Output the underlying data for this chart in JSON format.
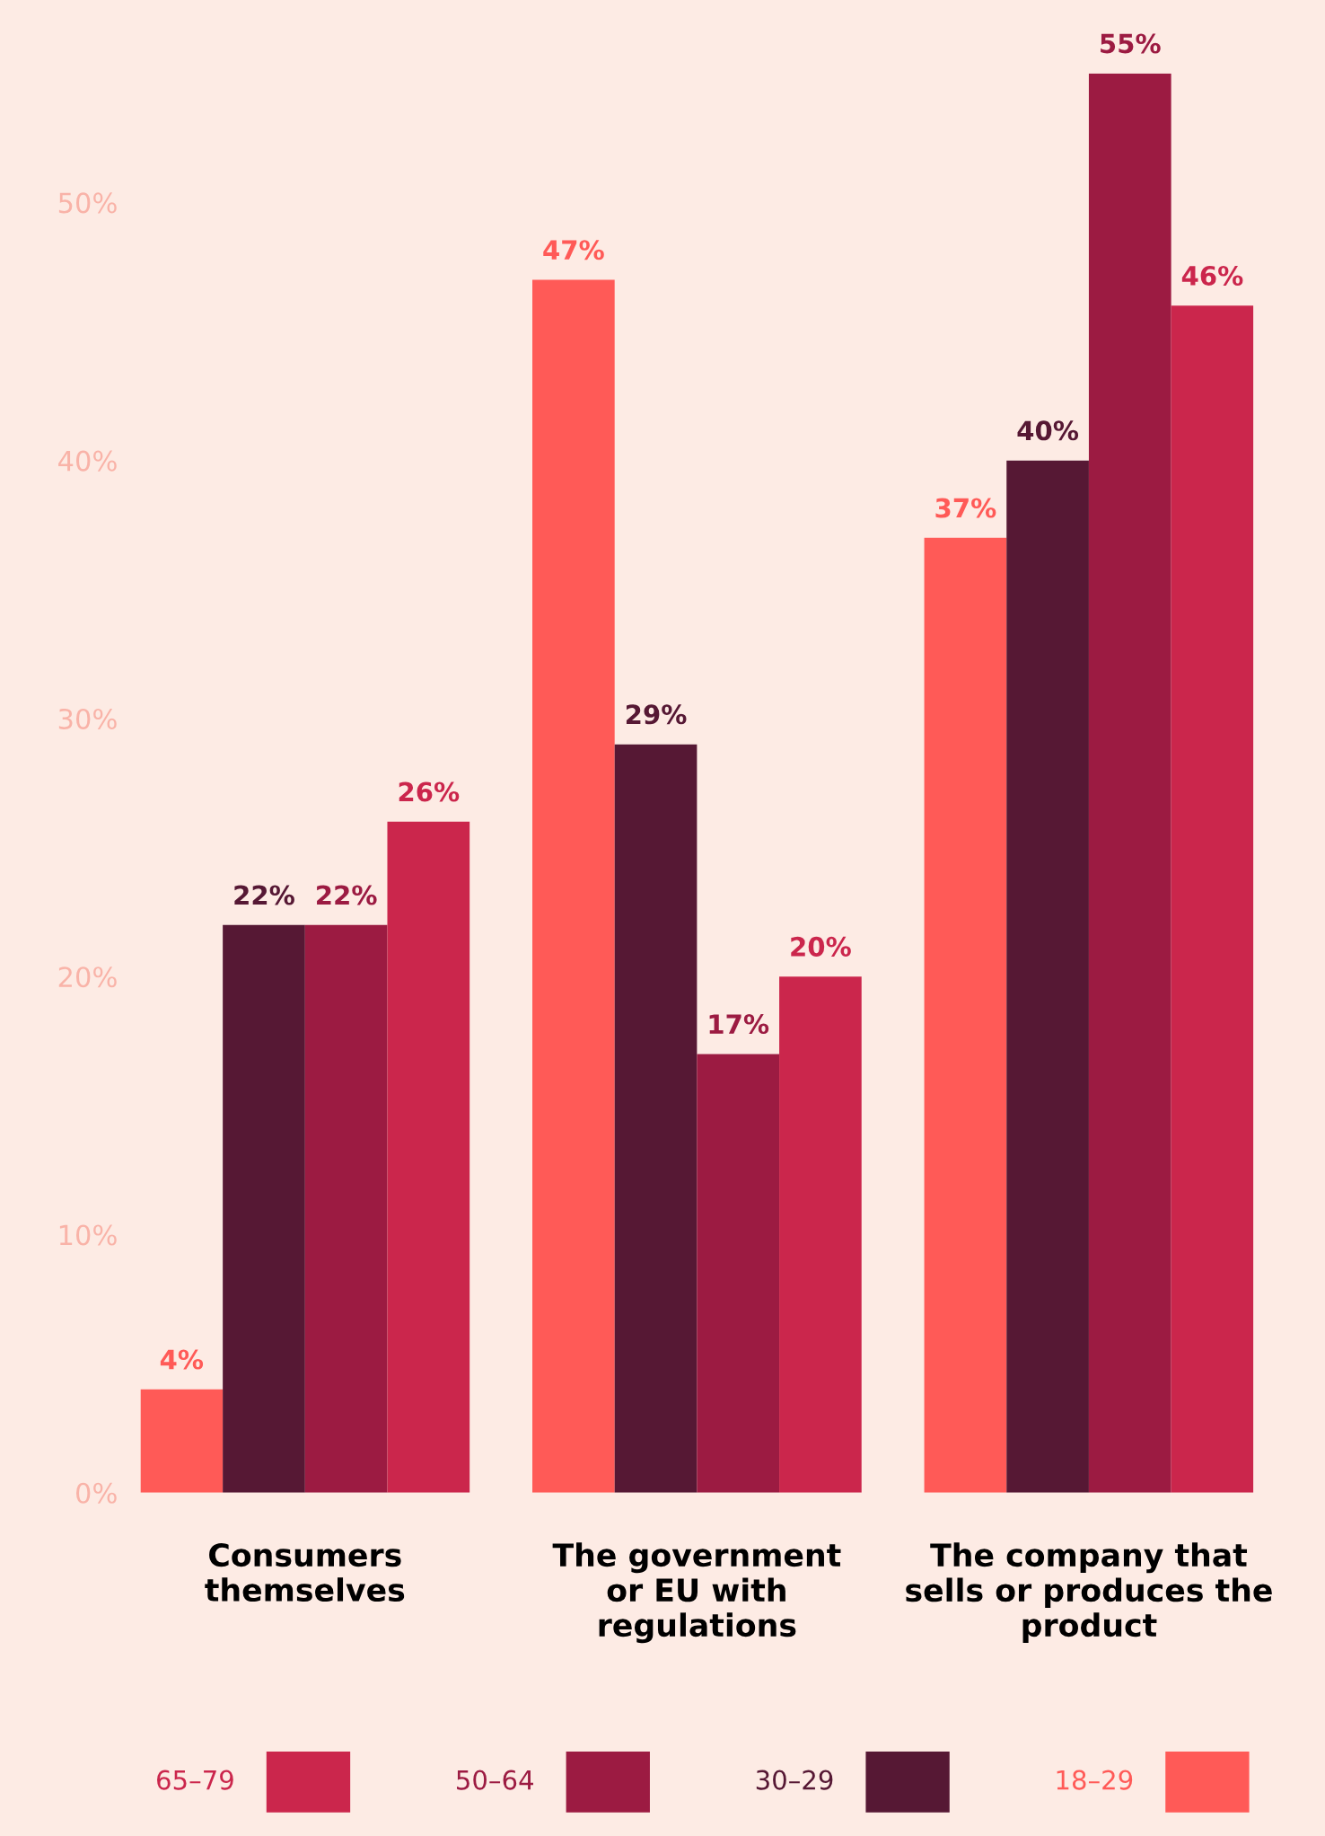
{
  "chart_data": {
    "type": "bar",
    "categories": [
      "Consumers\nthemselves",
      "The government\nor EU with\nregulations",
      "The company that\nsells or produces the\nproduct"
    ],
    "series": [
      {
        "name": "18–29",
        "color": "#ff5a57",
        "values": [
          4,
          47,
          37
        ],
        "value_labels": [
          "4%",
          "47%",
          "37%"
        ]
      },
      {
        "name": "30–29",
        "color": "#561834",
        "values": [
          22,
          29,
          40
        ],
        "value_labels": [
          "22%",
          "29%",
          "40%"
        ]
      },
      {
        "name": "50–64",
        "color": "#9c1b42",
        "values": [
          22,
          17,
          55
        ],
        "value_labels": [
          "22%",
          "17%",
          "55%"
        ]
      },
      {
        "name": "65–79",
        "color": "#cb264c",
        "values": [
          26,
          20,
          46
        ],
        "value_labels": [
          "26%",
          "20%",
          "46%"
        ]
      }
    ],
    "ylim": [
      0,
      55
    ],
    "yticks": [
      {
        "value": 0,
        "label": "0%"
      },
      {
        "value": 10,
        "label": "10%"
      },
      {
        "value": 20,
        "label": "20%"
      },
      {
        "value": 30,
        "label": "30%"
      },
      {
        "value": 40,
        "label": "40%"
      },
      {
        "value": 50,
        "label": "50%"
      }
    ],
    "grid": false,
    "legend": "bottom"
  }
}
